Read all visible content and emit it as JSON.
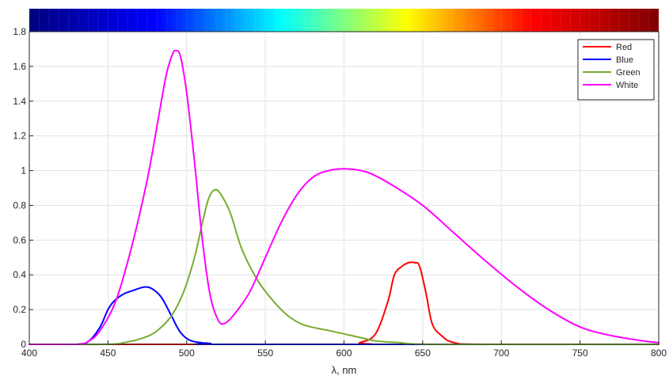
{
  "chart_data": {
    "type": "line",
    "title": "",
    "xlabel": "λ, nm",
    "ylabel": "",
    "xlim": [
      400,
      800
    ],
    "ylim": [
      0,
      1.8
    ],
    "xticks": [
      "400",
      "450",
      "500",
      "550",
      "600",
      "650",
      "700",
      "750",
      "800"
    ],
    "yticks": [
      "0",
      "0.2",
      "0.4",
      "0.6",
      "0.8",
      "1",
      "1.2",
      "1.4",
      "1.6",
      "1.8"
    ],
    "grid": true,
    "legend_position": "top-right",
    "colorbar": {
      "range": [
        400,
        800
      ],
      "stops": [
        "#00007f",
        "#0000ff",
        "#00ffff",
        "#ffff00",
        "#ff0000",
        "#7f0000"
      ]
    },
    "series": [
      {
        "name": "Red",
        "color": "#ff0000",
        "points": [
          [
            400,
            0
          ],
          [
            600,
            0
          ],
          [
            610,
            0.01
          ],
          [
            620,
            0.06
          ],
          [
            628,
            0.25
          ],
          [
            632,
            0.4
          ],
          [
            637,
            0.45
          ],
          [
            641,
            0.47
          ],
          [
            645,
            0.47
          ],
          [
            648,
            0.45
          ],
          [
            652,
            0.3
          ],
          [
            656,
            0.12
          ],
          [
            662,
            0.05
          ],
          [
            670,
            0.01
          ],
          [
            690,
            0
          ],
          [
            800,
            0
          ]
        ]
      },
      {
        "name": "Blue",
        "color": "#0000ff",
        "points": [
          [
            400,
            0
          ],
          [
            430,
            0
          ],
          [
            438,
            0.02
          ],
          [
            445,
            0.1
          ],
          [
            450,
            0.2
          ],
          [
            454,
            0.25
          ],
          [
            460,
            0.29
          ],
          [
            466,
            0.31
          ],
          [
            473,
            0.33
          ],
          [
            478,
            0.32
          ],
          [
            484,
            0.27
          ],
          [
            490,
            0.17
          ],
          [
            496,
            0.07
          ],
          [
            503,
            0.02
          ],
          [
            515,
            0.005
          ],
          [
            530,
            0
          ],
          [
            800,
            0
          ]
        ]
      },
      {
        "name": "Green",
        "color": "#77ac30",
        "points": [
          [
            400,
            0
          ],
          [
            450,
            0
          ],
          [
            460,
            0.01
          ],
          [
            470,
            0.03
          ],
          [
            480,
            0.07
          ],
          [
            490,
            0.16
          ],
          [
            498,
            0.3
          ],
          [
            505,
            0.5
          ],
          [
            510,
            0.7
          ],
          [
            514,
            0.84
          ],
          [
            518,
            0.89
          ],
          [
            522,
            0.86
          ],
          [
            528,
            0.75
          ],
          [
            535,
            0.55
          ],
          [
            545,
            0.37
          ],
          [
            555,
            0.25
          ],
          [
            565,
            0.16
          ],
          [
            575,
            0.11
          ],
          [
            590,
            0.08
          ],
          [
            600,
            0.06
          ],
          [
            610,
            0.04
          ],
          [
            620,
            0.02
          ],
          [
            635,
            0.01
          ],
          [
            660,
            0
          ],
          [
            800,
            0
          ]
        ]
      },
      {
        "name": "White",
        "color": "#ff00ff",
        "points": [
          [
            400,
            0
          ],
          [
            430,
            0
          ],
          [
            438,
            0.02
          ],
          [
            445,
            0.08
          ],
          [
            455,
            0.25
          ],
          [
            465,
            0.56
          ],
          [
            475,
            0.95
          ],
          [
            482,
            1.3
          ],
          [
            487,
            1.55
          ],
          [
            491,
            1.67
          ],
          [
            493,
            1.69
          ],
          [
            496,
            1.66
          ],
          [
            500,
            1.45
          ],
          [
            505,
            1.05
          ],
          [
            510,
            0.6
          ],
          [
            515,
            0.28
          ],
          [
            520,
            0.14
          ],
          [
            524,
            0.12
          ],
          [
            530,
            0.17
          ],
          [
            540,
            0.3
          ],
          [
            550,
            0.5
          ],
          [
            560,
            0.7
          ],
          [
            570,
            0.86
          ],
          [
            580,
            0.96
          ],
          [
            590,
            1.0
          ],
          [
            602,
            1.01
          ],
          [
            615,
            0.99
          ],
          [
            630,
            0.92
          ],
          [
            650,
            0.8
          ],
          [
            670,
            0.64
          ],
          [
            690,
            0.48
          ],
          [
            710,
            0.33
          ],
          [
            730,
            0.2
          ],
          [
            750,
            0.1
          ],
          [
            770,
            0.05
          ],
          [
            790,
            0.02
          ],
          [
            800,
            0.01
          ]
        ]
      }
    ]
  }
}
